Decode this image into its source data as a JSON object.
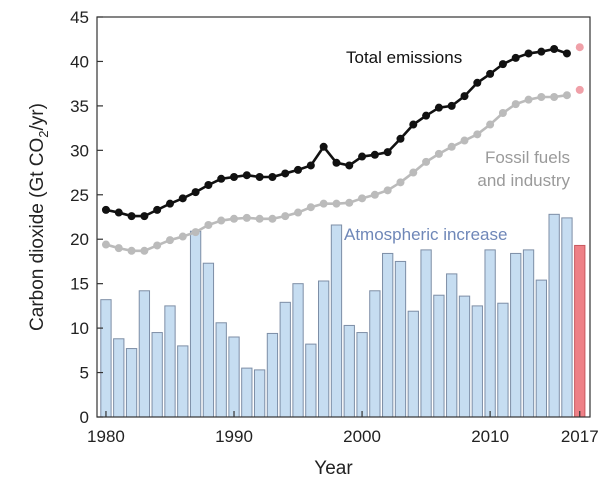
{
  "chart_data": {
    "type": "bar+line",
    "title": "",
    "xlabel": "Year",
    "ylabel": {
      "prefix": "Carbon dioxide (Gt CO",
      "subscript": "2",
      "suffix": "/yr)"
    },
    "xlim": [
      1979.3,
      2017.8
    ],
    "ylim": [
      0,
      45
    ],
    "x_ticks": [
      1980,
      1990,
      2000,
      2010,
      2017
    ],
    "y_ticks": [
      0,
      5,
      10,
      15,
      20,
      25,
      30,
      35,
      40,
      45
    ],
    "grid": false,
    "x": [
      1980,
      1981,
      1982,
      1983,
      1984,
      1985,
      1986,
      1987,
      1988,
      1989,
      1990,
      1991,
      1992,
      1993,
      1994,
      1995,
      1996,
      1997,
      1998,
      1999,
      2000,
      2001,
      2002,
      2003,
      2004,
      2005,
      2006,
      2007,
      2008,
      2009,
      2010,
      2011,
      2012,
      2013,
      2014,
      2015,
      2016,
      2017
    ],
    "projected_year": 2017,
    "series": [
      {
        "name": "Total emissions",
        "kind": "line",
        "color": "#111111",
        "projection_color": "#f0a0a8",
        "values": [
          23.3,
          23.0,
          22.6,
          22.6,
          23.3,
          24.0,
          24.6,
          25.3,
          26.1,
          26.8,
          27.0,
          27.2,
          27.0,
          27.0,
          27.4,
          27.8,
          28.3,
          30.4,
          28.6,
          28.3,
          29.3,
          29.5,
          29.8,
          31.3,
          32.9,
          33.9,
          34.8,
          35.0,
          36.1,
          37.6,
          38.6,
          39.7,
          40.4,
          40.9,
          41.1,
          41.4,
          40.9,
          41.6
        ]
      },
      {
        "name": "Fossil fuels and industry",
        "name_lines": [
          "Fossil fuels",
          "and industry"
        ],
        "kind": "line",
        "color": "#bbbbbb",
        "projection_color": "#f0a0a8",
        "values": [
          19.4,
          19.0,
          18.7,
          18.7,
          19.3,
          19.9,
          20.3,
          20.8,
          21.6,
          22.1,
          22.3,
          22.4,
          22.3,
          22.3,
          22.6,
          23.0,
          23.6,
          24.0,
          24.0,
          24.1,
          24.6,
          25.0,
          25.5,
          26.4,
          27.5,
          28.7,
          29.6,
          30.4,
          31.1,
          31.8,
          32.9,
          34.2,
          35.2,
          35.7,
          36.0,
          36.0,
          36.2,
          36.8
        ]
      },
      {
        "name": "Atmospheric increase",
        "kind": "bar",
        "color": "#c6ddf1",
        "edge": "#7d8ea6",
        "projection_color": "#ee8086",
        "values": [
          13.2,
          8.8,
          7.7,
          14.2,
          9.5,
          12.5,
          8.0,
          20.9,
          17.3,
          10.6,
          9.0,
          5.5,
          5.3,
          9.4,
          12.9,
          15.0,
          8.2,
          15.3,
          21.6,
          10.3,
          9.5,
          14.2,
          18.4,
          17.5,
          11.9,
          18.8,
          13.7,
          16.1,
          13.6,
          12.5,
          18.8,
          12.8,
          18.4,
          18.8,
          15.4,
          22.8,
          22.4,
          19.3
        ]
      }
    ]
  }
}
